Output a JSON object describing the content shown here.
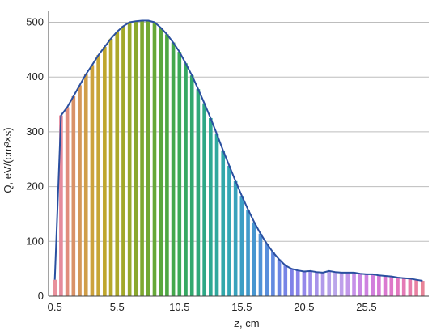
{
  "chart_data": {
    "type": "bar",
    "xlabel": "z, cm",
    "ylabel": "Q, eV/(cm³×s)",
    "xlim": [
      0.0,
      30.5
    ],
    "ylim": [
      0,
      520
    ],
    "grid": "horizontal",
    "xticks": [
      0.5,
      5.5,
      10.5,
      15.5,
      20.5,
      25.5
    ],
    "yticks": [
      0,
      100,
      200,
      300,
      400,
      500
    ],
    "bar_width": 0.3,
    "line_color": "#2a4fa0",
    "grid_color": "#bdbdbd",
    "x": [
      0.5,
      1.0,
      1.5,
      2.0,
      2.5,
      3.0,
      3.5,
      4.0,
      4.5,
      5.0,
      5.5,
      6.0,
      6.5,
      7.0,
      7.5,
      8.0,
      8.5,
      9.0,
      9.5,
      10.0,
      10.5,
      11.0,
      11.5,
      12.0,
      12.5,
      13.0,
      13.5,
      14.0,
      14.5,
      15.0,
      15.5,
      16.0,
      16.5,
      17.0,
      17.5,
      18.0,
      18.5,
      19.0,
      19.5,
      20.0,
      20.5,
      21.0,
      21.5,
      22.0,
      22.5,
      23.0,
      23.5,
      24.0,
      24.5,
      25.0,
      25.5,
      26.0,
      26.5,
      27.0,
      27.5,
      28.0,
      28.5,
      29.0,
      29.5,
      30.0
    ],
    "values": [
      30,
      330,
      345,
      365,
      385,
      405,
      422,
      440,
      455,
      470,
      483,
      493,
      500,
      502,
      503,
      503,
      500,
      490,
      478,
      463,
      446,
      425,
      403,
      378,
      352,
      325,
      296,
      266,
      238,
      210,
      183,
      158,
      135,
      114,
      96,
      80,
      67,
      56,
      50,
      47,
      45,
      46,
      44,
      43,
      46,
      44,
      43,
      43,
      43,
      41,
      40,
      40,
      38,
      37,
      36,
      34,
      33,
      32,
      30,
      28
    ],
    "bar_colors": [
      "#e8909c",
      "#e58a9c",
      "#e08c7c",
      "#d99268",
      "#d49858",
      "#d09e48",
      "#cca23c",
      "#c7a634",
      "#bfa62c",
      "#b6a82a",
      "#aca82a",
      "#a2a82a",
      "#96a82c",
      "#8aa82e",
      "#7ea830",
      "#72a834",
      "#66a838",
      "#5aa83e",
      "#4ea844",
      "#44a84c",
      "#3ca856",
      "#36a862",
      "#32a86e",
      "#30a87a",
      "#2ea886",
      "#2ea892",
      "#30a89e",
      "#32a8aa",
      "#34a6b4",
      "#38a2bc",
      "#3c9ec4",
      "#429aca",
      "#4896d0",
      "#5092d6",
      "#588edc",
      "#628ae0",
      "#6c86e4",
      "#7684e6",
      "#8082e8",
      "#8a84ea",
      "#9488ea",
      "#9e8eea",
      "#a894ea",
      "#b09aea",
      "#b6a0ea",
      "#baa6ea",
      "#bea0ea",
      "#c298ea",
      "#c690e8",
      "#ca88e4",
      "#ce82e0",
      "#d27edc",
      "#d67ad6",
      "#da78d0",
      "#de78c8",
      "#e278c0",
      "#e47ab6",
      "#e67cac",
      "#e880a2",
      "#e88498"
    ]
  }
}
